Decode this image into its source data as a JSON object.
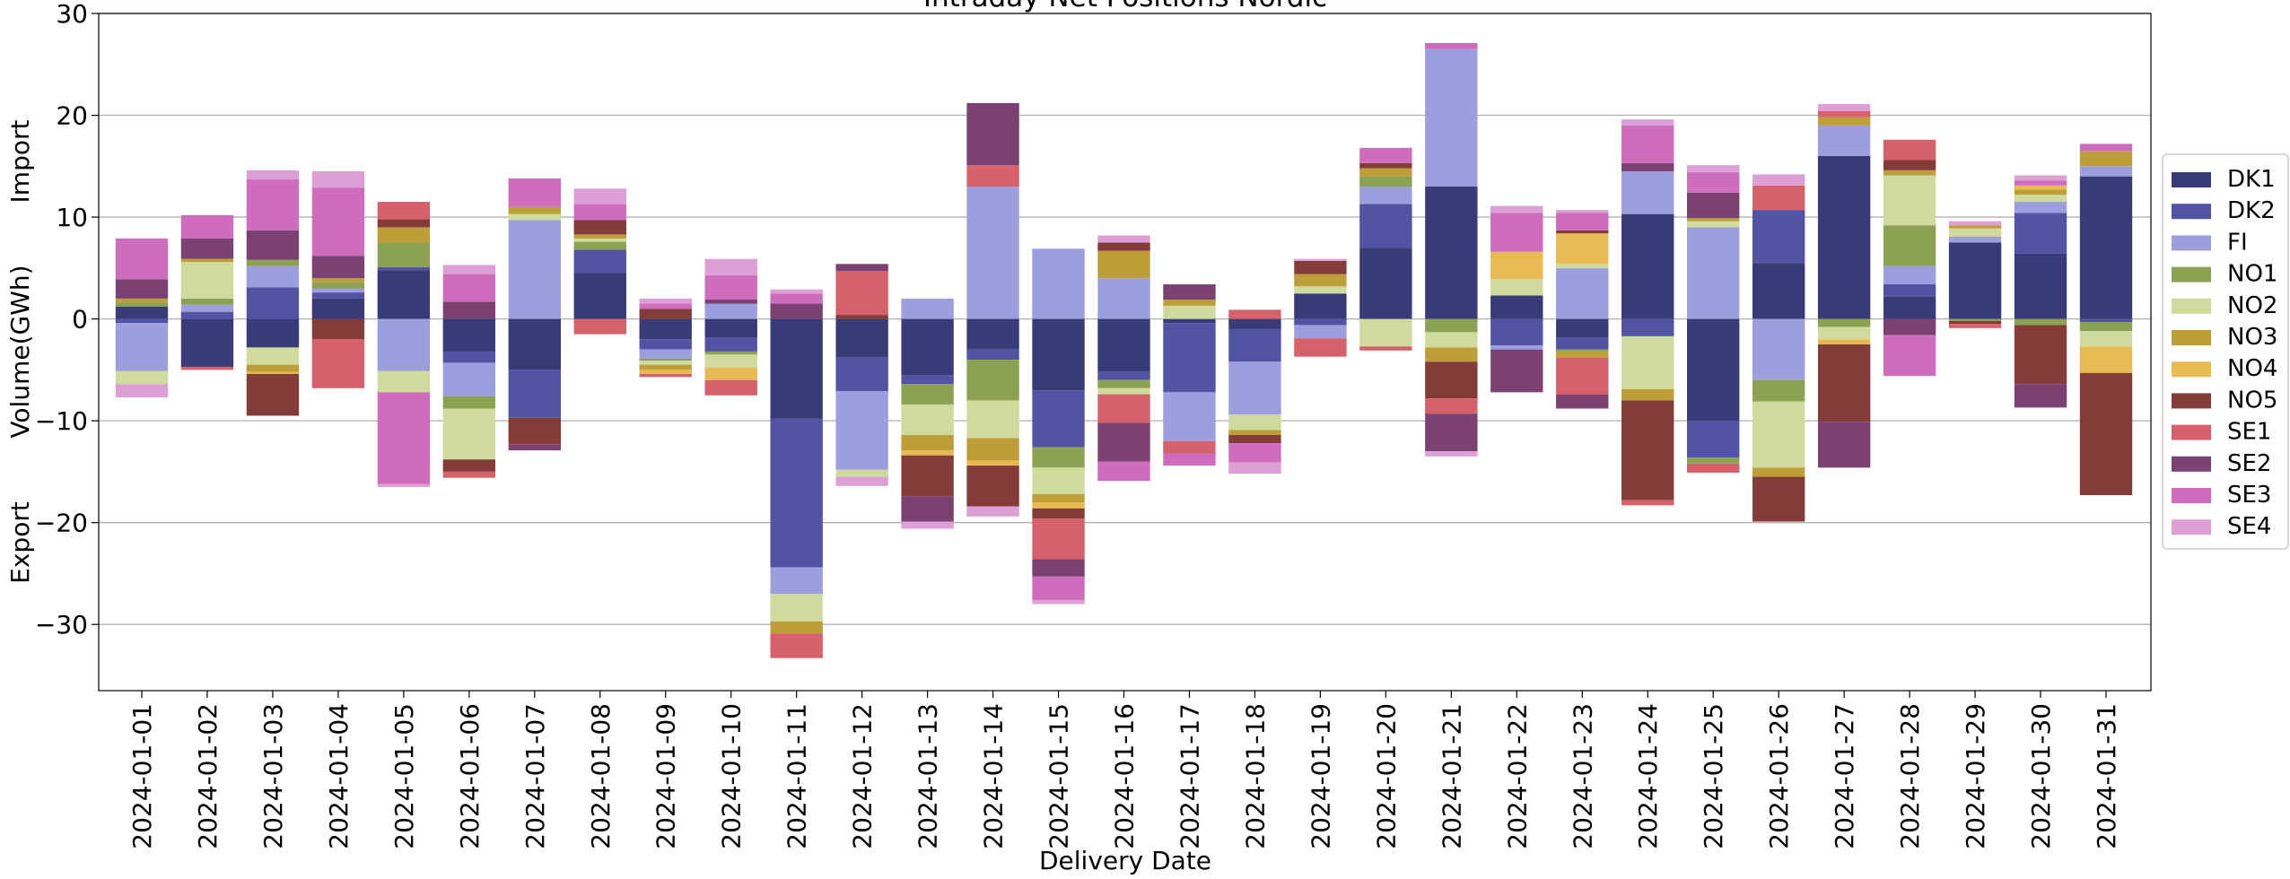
{
  "chart_data": {
    "type": "bar",
    "stacked": true,
    "title": "Intraday Net Positions Nordic",
    "xlabel": "Delivery Date",
    "ylabel": "Volume(GWh)",
    "ylabel_top": "Import",
    "ylabel_bottom": "Export",
    "ylim": [
      -36.5,
      30
    ],
    "yticks": [
      30,
      20,
      10,
      0,
      -10,
      -20,
      -30
    ],
    "grid": "horizontal",
    "legend_position": "right",
    "categories": [
      "2024-01-01",
      "2024-01-02",
      "2024-01-03",
      "2024-01-04",
      "2024-01-05",
      "2024-01-06",
      "2024-01-07",
      "2024-01-08",
      "2024-01-09",
      "2024-01-10",
      "2024-01-11",
      "2024-01-12",
      "2024-01-13",
      "2024-01-14",
      "2024-01-15",
      "2024-01-16",
      "2024-01-17",
      "2024-01-18",
      "2024-01-19",
      "2024-01-20",
      "2024-01-21",
      "2024-01-22",
      "2024-01-23",
      "2024-01-24",
      "2024-01-25",
      "2024-01-26",
      "2024-01-27",
      "2024-01-28",
      "2024-01-29",
      "2024-01-30",
      "2024-01-31"
    ],
    "series": [
      {
        "name": "DK1",
        "color": "#393b79",
        "values": [
          1.2,
          -4.7,
          -2.8,
          2.0,
          4.8,
          -3.2,
          -5.0,
          4.5,
          -2.0,
          -1.8,
          -9.8,
          -3.8,
          -5.5,
          -3.0,
          -7.0,
          -5.2,
          -0.4,
          -1.0,
          2.5,
          7.0,
          13.0,
          2.3,
          -1.8,
          10.3,
          -10.0,
          5.5,
          16.0,
          2.2,
          7.5,
          6.4,
          14.0
        ]
      },
      {
        "name": "DK2",
        "color": "#5254a3",
        "values": [
          -0.4,
          0.7,
          3.1,
          0.6,
          0.3,
          -1.1,
          -4.7,
          2.3,
          -1.0,
          -1.4,
          -14.6,
          -3.3,
          -0.9,
          -1.0,
          -5.6,
          -0.8,
          -6.8,
          -3.2,
          -0.6,
          4.3,
          0.0,
          -2.6,
          -1.2,
          -1.7,
          -3.6,
          5.2,
          0.0,
          1.2,
          0.0,
          4.0,
          -0.3
        ]
      },
      {
        "name": "FI",
        "color": "#9c9ede",
        "values": [
          -4.7,
          0.7,
          2.1,
          0.4,
          -5.1,
          -3.3,
          9.7,
          0.0,
          -0.9,
          1.5,
          -2.6,
          -7.7,
          2.0,
          13.0,
          6.9,
          4.0,
          -4.8,
          -5.2,
          -1.3,
          1.7,
          13.5,
          -0.4,
          5.0,
          4.2,
          9.0,
          -6.0,
          3.0,
          1.8,
          0.6,
          1.1,
          1.0
        ]
      },
      {
        "name": "NO1",
        "color": "#8ca252",
        "values": [
          0.4,
          0.6,
          0.6,
          0.6,
          2.4,
          -1.2,
          0.0,
          0.8,
          -0.2,
          -0.3,
          0.0,
          0.0,
          -2.0,
          -4.0,
          -2.0,
          -0.8,
          0.0,
          0.0,
          0.0,
          1.0,
          -1.3,
          0.0,
          -0.2,
          0.0,
          -0.6,
          -2.1,
          -0.8,
          4.0,
          -0.2,
          -0.6,
          -0.9
        ]
      },
      {
        "name": "NO2",
        "color": "#cedb9c",
        "values": [
          -1.3,
          3.6,
          -1.7,
          0.0,
          -2.1,
          -5.0,
          0.6,
          0.3,
          -0.4,
          -1.3,
          -2.7,
          -0.7,
          -3.0,
          -3.7,
          -2.6,
          -0.6,
          1.3,
          -1.5,
          0.7,
          -2.7,
          -1.5,
          1.6,
          0.4,
          -5.2,
          0.6,
          -6.5,
          -1.2,
          4.9,
          0.8,
          0.7,
          -1.5
        ]
      },
      {
        "name": "NO3",
        "color": "#bd9e39",
        "values": [
          0.4,
          0.3,
          -0.7,
          0.4,
          1.5,
          0.0,
          0.7,
          0.4,
          -0.5,
          0.0,
          -1.2,
          0.0,
          -1.5,
          -2.2,
          -0.8,
          2.7,
          0.6,
          -0.5,
          1.2,
          0.8,
          -1.4,
          0.0,
          -0.6,
          -1.1,
          0.3,
          -0.9,
          0.8,
          0.5,
          0.3,
          0.5,
          1.5
        ]
      },
      {
        "name": "NO4",
        "color": "#e7ba52",
        "values": [
          0.0,
          0.0,
          -0.2,
          0.0,
          0.0,
          0.0,
          0.0,
          0.0,
          -0.4,
          -1.2,
          0.0,
          0.0,
          -0.5,
          -0.5,
          -0.6,
          0.0,
          0.0,
          0.0,
          0.0,
          0.0,
          0.0,
          2.7,
          3.0,
          0.0,
          0.0,
          0.0,
          -0.5,
          0.0,
          0.0,
          0.4,
          -2.6
        ]
      },
      {
        "name": "NO5",
        "color": "#843c39",
        "values": [
          0.0,
          0.0,
          -4.1,
          -2.0,
          0.8,
          -1.2,
          -2.6,
          1.4,
          1.0,
          0.0,
          0.0,
          0.4,
          -4.0,
          -4.0,
          -1.0,
          0.8,
          0.0,
          -0.8,
          1.3,
          0.5,
          -3.6,
          0.0,
          0.3,
          -9.8,
          0.0,
          -4.4,
          -7.6,
          1.0,
          -0.3,
          -5.8,
          -12.0
        ]
      },
      {
        "name": "SE1",
        "color": "#d6616b",
        "values": [
          0.0,
          -0.3,
          0.0,
          -4.8,
          1.7,
          -0.6,
          0.0,
          -1.5,
          -0.3,
          -1.5,
          -2.4,
          4.3,
          0.0,
          2.1,
          -4.0,
          -2.8,
          -1.2,
          0.9,
          -1.8,
          -0.4,
          -1.5,
          0.0,
          -3.6,
          -0.5,
          -0.9,
          2.4,
          0.6,
          2.0,
          -0.4,
          0.0,
          0.0
        ]
      },
      {
        "name": "SE2",
        "color": "#7b4173",
        "values": [
          1.9,
          2.0,
          2.9,
          2.2,
          0.0,
          1.7,
          -0.6,
          0.0,
          0.0,
          0.4,
          1.5,
          0.7,
          -2.5,
          6.1,
          -1.7,
          -3.8,
          1.5,
          0.0,
          0.0,
          0.0,
          -3.7,
          -4.2,
          -1.4,
          0.8,
          2.5,
          0.0,
          -4.5,
          -1.6,
          0.0,
          -2.3,
          0.0
        ]
      },
      {
        "name": "SE3",
        "color": "#ce6dbd",
        "values": [
          4.0,
          2.3,
          5.0,
          6.7,
          -9.0,
          2.7,
          2.8,
          1.6,
          0.5,
          2.4,
          1.0,
          0.0,
          0.0,
          0.0,
          -2.3,
          -1.9,
          -1.2,
          -1.9,
          0.0,
          1.5,
          0.6,
          3.8,
          1.7,
          3.7,
          2.0,
          0.0,
          0.0,
          -4.0,
          0.0,
          0.5,
          0.7
        ]
      },
      {
        "name": "SE4",
        "color": "#de9ed6",
        "values": [
          -1.3,
          0.0,
          0.9,
          1.6,
          -0.3,
          0.9,
          0.0,
          1.5,
          0.5,
          1.6,
          0.4,
          -0.9,
          -0.7,
          -1.0,
          -0.4,
          0.7,
          0.0,
          -1.1,
          0.2,
          0.0,
          -0.5,
          0.7,
          0.3,
          0.6,
          0.7,
          1.1,
          0.7,
          0.0,
          0.4,
          0.5,
          0.0
        ]
      }
    ]
  }
}
